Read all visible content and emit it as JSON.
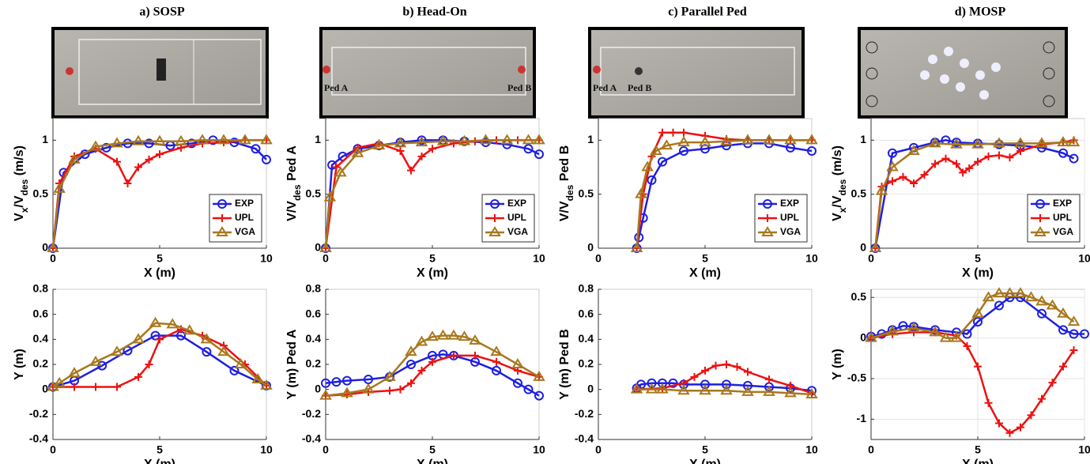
{
  "panels": [
    {
      "title": "a) SOSP",
      "photo_labels": []
    },
    {
      "title": "b) Head-On",
      "photo_labels": [
        "Ped A",
        "Ped B"
      ]
    },
    {
      "title": "c) Parallel Ped",
      "photo_labels": [
        "Ped A",
        "Ped B"
      ]
    },
    {
      "title": "d) MOSP",
      "photo_labels": []
    }
  ],
  "chart_data": [
    {
      "type": "line",
      "xlabel": "X (m)",
      "ylabel": [
        {
          "text": "V"
        },
        {
          "text": "x",
          "sub": true
        },
        {
          "text": "/V"
        },
        {
          "text": "des",
          "sub": true
        },
        {
          "text": " (m/s)"
        }
      ],
      "xlim": [
        0,
        10
      ],
      "ylim": [
        0,
        1.2
      ],
      "xticks": [
        0,
        5,
        10
      ],
      "yticks": [
        0,
        0.5,
        1
      ],
      "grid": false,
      "legend": "lower right",
      "series": [
        {
          "name": "EXP",
          "color": "#1f1fe0",
          "marker": "circle",
          "x": [
            0,
            0.5,
            1.5,
            2.5,
            3.5,
            4.5,
            5.5,
            6.5,
            7.5,
            8.5,
            9.5,
            10
          ],
          "values": [
            0,
            0.7,
            0.87,
            0.93,
            0.97,
            0.97,
            0.95,
            0.97,
            1.0,
            0.98,
            0.92,
            0.82
          ]
        },
        {
          "name": "UPL",
          "color": "#ee1111",
          "marker": "plus",
          "x": [
            0,
            0.3,
            1,
            2,
            3,
            3.5,
            4,
            4.5,
            5,
            6,
            7,
            8,
            9,
            10
          ],
          "values": [
            0,
            0.6,
            0.85,
            0.92,
            0.8,
            0.6,
            0.75,
            0.82,
            0.87,
            0.93,
            0.97,
            0.98,
            1,
            1
          ]
        },
        {
          "name": "VGA",
          "color": "#a8781e",
          "marker": "triangle",
          "x": [
            0,
            0.3,
            1,
            2,
            3,
            4,
            5,
            6,
            7,
            8,
            9,
            10
          ],
          "values": [
            0,
            0.55,
            0.82,
            0.94,
            0.97,
            0.99,
            0.99,
            0.99,
            1,
            1,
            1,
            1
          ]
        }
      ]
    },
    {
      "type": "line",
      "xlabel": "X (m)",
      "ylabel": [
        {
          "text": "Y (m)"
        }
      ],
      "xlim": [
        0,
        10
      ],
      "ylim": [
        -0.4,
        0.8
      ],
      "xticks": [
        0,
        5,
        10
      ],
      "yticks": [
        -0.4,
        -0.2,
        0,
        0.2,
        0.4,
        0.6,
        0.8
      ],
      "grid": false,
      "series": [
        {
          "name": "EXP",
          "color": "#1f1fe0",
          "marker": "circle",
          "x": [
            0,
            1,
            2.3,
            3.5,
            4.8,
            6,
            7.2,
            8.5,
            10
          ],
          "values": [
            0.02,
            0.07,
            0.19,
            0.31,
            0.43,
            0.43,
            0.3,
            0.15,
            0.03
          ]
        },
        {
          "name": "UPL",
          "color": "#ee1111",
          "marker": "plus",
          "x": [
            0,
            1,
            2,
            3,
            4,
            4.5,
            5,
            6,
            7,
            8,
            9,
            10
          ],
          "values": [
            0.02,
            0.02,
            0.02,
            0.02,
            0.1,
            0.2,
            0.4,
            0.48,
            0.43,
            0.35,
            0.2,
            0.03
          ]
        },
        {
          "name": "VGA",
          "color": "#a8781e",
          "marker": "triangle",
          "x": [
            0,
            0.3,
            1,
            2,
            3,
            4,
            4.8,
            5.6,
            6.4,
            7.2,
            8,
            8.8,
            9.6,
            10
          ],
          "values": [
            0.02,
            0.05,
            0.13,
            0.22,
            0.3,
            0.4,
            0.53,
            0.52,
            0.47,
            0.4,
            0.3,
            0.2,
            0.08,
            0.03
          ]
        }
      ]
    },
    {
      "type": "line",
      "xlabel": "X (m)",
      "ylabel": [
        {
          "text": "V/V"
        },
        {
          "text": "des",
          "sub": true
        },
        {
          "text": "  Ped A"
        }
      ],
      "xlim": [
        0,
        10
      ],
      "ylim": [
        0,
        1.2
      ],
      "xticks": [
        0,
        5,
        10
      ],
      "yticks": [
        0,
        0.5,
        1
      ],
      "grid": false,
      "legend": "lower right",
      "series": [
        {
          "name": "EXP",
          "color": "#1f1fe0",
          "marker": "circle",
          "x": [
            0,
            0.3,
            0.8,
            1.5,
            2.5,
            3.5,
            4.5,
            5.5,
            6.5,
            7.5,
            8.5,
            9.5,
            10
          ],
          "values": [
            0,
            0.77,
            0.85,
            0.92,
            0.95,
            0.98,
            1.0,
            1.0,
            0.99,
            0.98,
            0.96,
            0.92,
            0.87
          ]
        },
        {
          "name": "UPL",
          "color": "#ee1111",
          "marker": "plus",
          "x": [
            0,
            0.5,
            1.5,
            2.5,
            3.5,
            4,
            4.5,
            5,
            6,
            7,
            8,
            9,
            10
          ],
          "values": [
            0,
            0.75,
            0.93,
            0.97,
            0.9,
            0.72,
            0.85,
            0.92,
            0.97,
            0.99,
            1,
            1,
            1
          ]
        },
        {
          "name": "VGA",
          "color": "#a8781e",
          "marker": "triangle",
          "x": [
            0,
            0.2,
            0.7,
            1.5,
            2.5,
            3.5,
            4.5,
            5.5,
            6.5,
            7.5,
            8.5,
            9.5,
            10
          ],
          "values": [
            0,
            0.47,
            0.7,
            0.88,
            0.95,
            0.97,
            0.98,
            0.99,
            0.99,
            1,
            1,
            1,
            1
          ]
        }
      ]
    },
    {
      "type": "line",
      "xlabel": "X (m)",
      "ylabel": [
        {
          "text": "Y (m) Ped A"
        }
      ],
      "xlim": [
        0,
        10
      ],
      "ylim": [
        -0.4,
        0.8
      ],
      "xticks": [
        0,
        5,
        10
      ],
      "yticks": [
        -0.4,
        -0.2,
        0,
        0.2,
        0.4,
        0.6,
        0.8
      ],
      "grid": false,
      "series": [
        {
          "name": "EXP",
          "color": "#1f1fe0",
          "marker": "circle",
          "x": [
            0,
            0.5,
            1,
            2,
            3,
            4,
            5,
            5.5,
            6,
            7,
            8,
            9,
            9.5,
            10
          ],
          "values": [
            0.05,
            0.06,
            0.07,
            0.08,
            0.1,
            0.2,
            0.27,
            0.28,
            0.27,
            0.22,
            0.15,
            0.05,
            0,
            -0.05
          ]
        },
        {
          "name": "UPL",
          "color": "#ee1111",
          "marker": "plus",
          "x": [
            0,
            1,
            2,
            3,
            3.5,
            4,
            4.5,
            5,
            6,
            7,
            8,
            9,
            10
          ],
          "values": [
            -0.05,
            -0.04,
            -0.02,
            -0.01,
            0,
            0.05,
            0.15,
            0.22,
            0.27,
            0.27,
            0.22,
            0.15,
            0.1
          ]
        },
        {
          "name": "VGA",
          "color": "#a8781e",
          "marker": "triangle",
          "x": [
            0,
            1,
            2,
            3,
            4,
            4.5,
            5,
            5.5,
            6,
            6.5,
            7,
            8,
            9,
            10
          ],
          "values": [
            -0.05,
            -0.03,
            0,
            0.1,
            0.3,
            0.38,
            0.42,
            0.43,
            0.43,
            0.42,
            0.39,
            0.3,
            0.2,
            0.1
          ]
        }
      ]
    },
    {
      "type": "line",
      "xlabel": "X (m)",
      "ylabel": [
        {
          "text": "V/V"
        },
        {
          "text": "des",
          "sub": true
        },
        {
          "text": "  Ped B"
        }
      ],
      "xlim": [
        0,
        10
      ],
      "ylim": [
        0,
        1.2
      ],
      "xticks": [
        0,
        5,
        10
      ],
      "yticks": [
        0,
        0.5,
        1
      ],
      "grid": false,
      "legend": "lower right",
      "series": [
        {
          "name": "EXP",
          "color": "#1f1fe0",
          "marker": "circle",
          "x": [
            1.8,
            1.9,
            2.1,
            2.5,
            3,
            4,
            5,
            6,
            7,
            8,
            9,
            10
          ],
          "values": [
            0,
            0.1,
            0.28,
            0.63,
            0.8,
            0.9,
            0.92,
            0.95,
            0.97,
            0.97,
            0.93,
            0.9
          ]
        },
        {
          "name": "UPL",
          "color": "#ee1111",
          "marker": "plus",
          "x": [
            1.8,
            2.1,
            2.5,
            3,
            3.5,
            4,
            5,
            6,
            7,
            8,
            9,
            10
          ],
          "values": [
            0,
            0.5,
            0.85,
            1.07,
            1.07,
            1.07,
            1.04,
            1.01,
            1.0,
            1.0,
            1.0,
            1.0
          ]
        },
        {
          "name": "VGA",
          "color": "#a8781e",
          "marker": "triangle",
          "x": [
            1.8,
            2,
            2.3,
            2.7,
            3.2,
            4,
            5,
            6,
            7,
            8,
            9,
            10
          ],
          "values": [
            0,
            0.5,
            0.75,
            0.9,
            0.95,
            0.98,
            0.98,
            0.99,
            1,
            1,
            1,
            1
          ]
        }
      ]
    },
    {
      "type": "line",
      "xlabel": "X (m)",
      "ylabel": [
        {
          "text": "Y (m) Ped B"
        }
      ],
      "xlim": [
        0,
        10
      ],
      "ylim": [
        -0.4,
        0.8
      ],
      "xticks": [
        0,
        5,
        10
      ],
      "yticks": [
        -0.4,
        -0.2,
        0,
        0.2,
        0.4,
        0.6,
        0.8
      ],
      "grid": false,
      "series": [
        {
          "name": "EXP",
          "color": "#1f1fe0",
          "marker": "circle",
          "x": [
            1.8,
            2,
            2.5,
            3,
            3.5,
            4,
            5,
            6,
            7,
            8,
            9,
            10
          ],
          "values": [
            0.01,
            0.04,
            0.05,
            0.05,
            0.05,
            0.04,
            0.04,
            0.04,
            0.03,
            0.02,
            0.01,
            -0.01
          ]
        },
        {
          "name": "UPL",
          "color": "#ee1111",
          "marker": "plus",
          "x": [
            1.8,
            3,
            4,
            4.5,
            5,
            5.5,
            6,
            6.5,
            7,
            8,
            9,
            10
          ],
          "values": [
            0,
            0.01,
            0.05,
            0.1,
            0.15,
            0.19,
            0.2,
            0.18,
            0.14,
            0.08,
            0.03,
            -0.03
          ]
        },
        {
          "name": "VGA",
          "color": "#a8781e",
          "marker": "triangle",
          "x": [
            1.8,
            2.5,
            3,
            4,
            5,
            6,
            7,
            8,
            9,
            10
          ],
          "values": [
            0,
            0,
            0,
            -0.01,
            -0.01,
            -0.01,
            -0.02,
            -0.02,
            -0.03,
            -0.04
          ]
        }
      ]
    },
    {
      "type": "line",
      "xlabel": "X (m)",
      "ylabel": [
        {
          "text": "V"
        },
        {
          "text": "x",
          "sub": true
        },
        {
          "text": "/V"
        },
        {
          "text": "des",
          "sub": true
        },
        {
          "text": " (m/s)"
        }
      ],
      "xlim": [
        0,
        10
      ],
      "ylim": [
        0,
        1.2
      ],
      "xticks": [
        0,
        5,
        10
      ],
      "yticks": [
        0,
        0.5,
        1
      ],
      "grid": true,
      "legend": "lower right",
      "series": [
        {
          "name": "EXP",
          "color": "#1f1fe0",
          "marker": "circle",
          "x": [
            0.2,
            1,
            2,
            3,
            3.5,
            4,
            5,
            6,
            7,
            8,
            9,
            9.5
          ],
          "values": [
            0,
            0.88,
            0.93,
            0.98,
            1.0,
            0.98,
            0.97,
            0.96,
            0.95,
            0.93,
            0.88,
            0.83
          ]
        },
        {
          "name": "UPL",
          "color": "#ee1111",
          "marker": "plus",
          "x": [
            0.2,
            0.5,
            1,
            1.5,
            2,
            2.5,
            3,
            3.5,
            4,
            4.3,
            4.6,
            5,
            5.5,
            6,
            6.5,
            7,
            8,
            9,
            9.5
          ],
          "values": [
            0,
            0.57,
            0.62,
            0.66,
            0.6,
            0.68,
            0.78,
            0.83,
            0.78,
            0.7,
            0.74,
            0.8,
            0.85,
            0.86,
            0.84,
            0.9,
            0.96,
            0.98,
            1.0
          ]
        },
        {
          "name": "VGA",
          "color": "#a8781e",
          "marker": "triangle",
          "x": [
            0.2,
            0.5,
            1,
            2,
            3,
            4,
            5,
            6,
            7,
            8,
            9,
            9.5
          ],
          "values": [
            0,
            0.53,
            0.75,
            0.9,
            0.97,
            0.96,
            0.96,
            0.97,
            0.97,
            0.97,
            0.98,
            0.98
          ]
        }
      ]
    },
    {
      "type": "line",
      "xlabel": "X (m)",
      "ylabel": [
        {
          "text": "Y (m)"
        }
      ],
      "xlim": [
        0,
        10
      ],
      "ylim": [
        -1.25,
        0.6
      ],
      "xticks": [
        0,
        5,
        10
      ],
      "yticks": [
        -1,
        -0.5,
        0,
        0.5
      ],
      "grid": true,
      "series": [
        {
          "name": "EXP",
          "color": "#1f1fe0",
          "marker": "circle",
          "x": [
            0,
            0.5,
            1,
            1.5,
            2,
            3,
            4,
            4.5,
            5,
            6,
            6.5,
            7,
            8,
            9,
            9.5,
            10
          ],
          "values": [
            0.02,
            0.05,
            0.1,
            0.15,
            0.14,
            0.1,
            0.07,
            0.05,
            0.2,
            0.4,
            0.5,
            0.5,
            0.3,
            0.1,
            0.05,
            0.05
          ]
        },
        {
          "name": "UPL",
          "color": "#ee1111",
          "marker": "plus",
          "x": [
            0,
            1,
            2,
            3,
            4,
            4.5,
            5,
            5.5,
            6,
            6.5,
            7,
            7.5,
            8,
            8.5,
            9,
            9.5
          ],
          "values": [
            0,
            0.05,
            0.07,
            0.07,
            0.03,
            -0.1,
            -0.35,
            -0.8,
            -1.05,
            -1.17,
            -1.1,
            -0.95,
            -0.75,
            -0.55,
            -0.35,
            -0.15
          ]
        },
        {
          "name": "VGA",
          "color": "#a8781e",
          "marker": "triangle",
          "x": [
            0,
            1,
            2,
            3,
            3.5,
            4,
            5,
            5.5,
            6,
            6.5,
            7,
            7.5,
            8,
            8.5,
            9,
            9.5
          ],
          "values": [
            0,
            0.08,
            0.12,
            0.07,
            0,
            0,
            0.3,
            0.5,
            0.55,
            0.55,
            0.55,
            0.5,
            0.45,
            0.4,
            0.3,
            0.2
          ]
        }
      ]
    }
  ]
}
